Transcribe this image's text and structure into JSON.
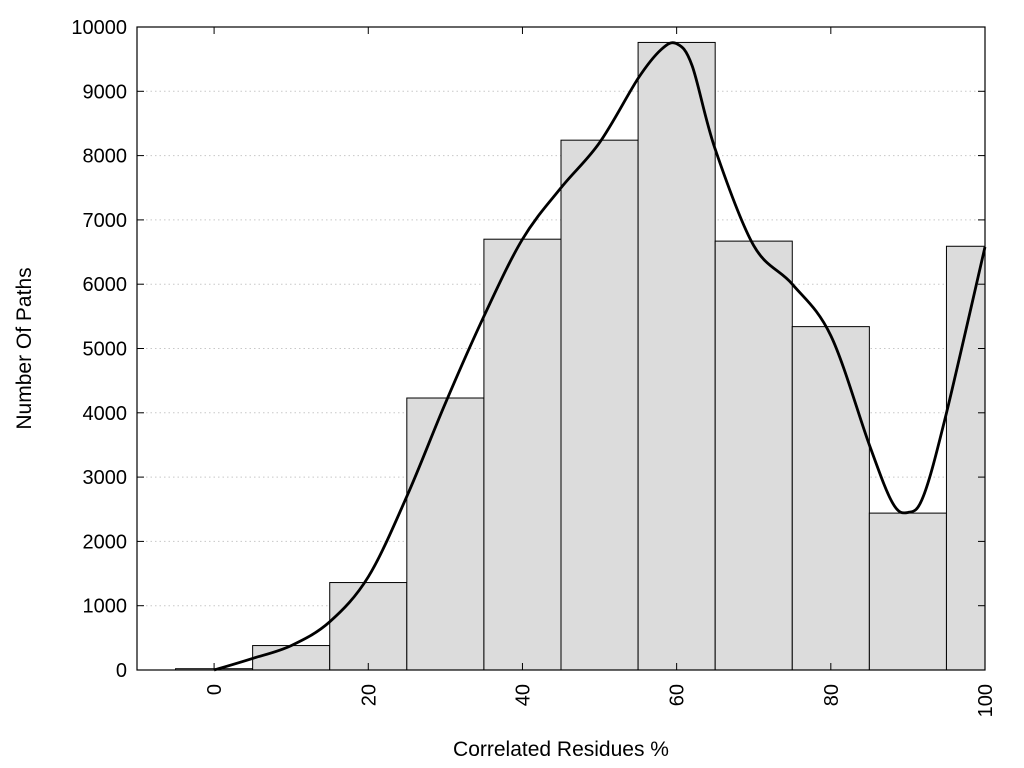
{
  "chart_data": {
    "type": "bar",
    "xlabel": "Correlated Residues %",
    "ylabel": "Number Of Paths",
    "xlim": [
      -10,
      100
    ],
    "ylim": [
      0,
      10000
    ],
    "x_ticks": [
      "0",
      "20",
      "40",
      "60",
      "80",
      "100"
    ],
    "y_ticks": [
      "0",
      "1000",
      "2000",
      "3000",
      "4000",
      "5000",
      "6000",
      "7000",
      "8000",
      "9000",
      "10000"
    ],
    "grid": "horizontal dotted",
    "bar_width": 10,
    "bars": [
      {
        "x": 0,
        "value": 20
      },
      {
        "x": 10,
        "value": 380
      },
      {
        "x": 20,
        "value": 1360
      },
      {
        "x": 30,
        "value": 4230
      },
      {
        "x": 40,
        "value": 6700
      },
      {
        "x": 50,
        "value": 8240
      },
      {
        "x": 60,
        "value": 9760
      },
      {
        "x": 70,
        "value": 6670
      },
      {
        "x": 80,
        "value": 5340
      },
      {
        "x": 90,
        "value": 2440
      },
      {
        "x": 100,
        "value": 6590
      }
    ],
    "series": [
      {
        "type": "line",
        "x": [
          0,
          5,
          10,
          15,
          20,
          25,
          30,
          35,
          40,
          45,
          50,
          55,
          58,
          60,
          62,
          65,
          70,
          75,
          80,
          85,
          88,
          90,
          92,
          95,
          100
        ],
        "values": [
          0,
          180,
          380,
          750,
          1450,
          2700,
          4150,
          5500,
          6700,
          7500,
          8200,
          9200,
          9650,
          9740,
          9400,
          8100,
          6600,
          6000,
          5200,
          3500,
          2600,
          2450,
          2700,
          4000,
          6580
        ]
      }
    ],
    "colors": {
      "bar_fill": "#dcdcdc",
      "bar_stroke": "#000000",
      "line": "#000000",
      "grid": "#c8c8c8"
    }
  }
}
